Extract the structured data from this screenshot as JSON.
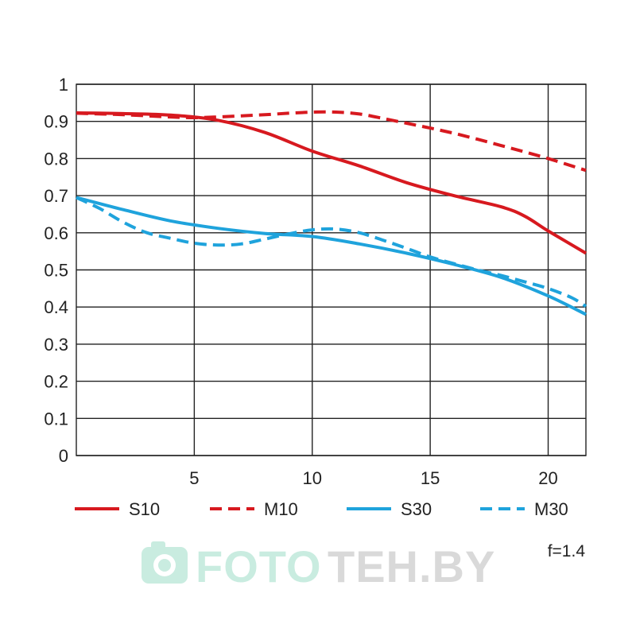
{
  "chart_data": {
    "type": "line",
    "title": "",
    "xlabel": "",
    "ylabel": "",
    "xlim": [
      0,
      21.6
    ],
    "ylim": [
      0,
      1
    ],
    "x_ticks": [
      5,
      10,
      15,
      20
    ],
    "y_ticks": [
      0,
      0.1,
      0.2,
      0.3,
      0.4,
      0.5,
      0.6,
      0.7,
      0.8,
      0.9,
      1
    ],
    "x_tick_labels": [
      "5",
      "10",
      "15",
      "20"
    ],
    "y_tick_labels": [
      "0",
      "0.1",
      "0.2",
      "0.3",
      "0.4",
      "0.5",
      "0.6",
      "0.7",
      "0.8",
      "0.9",
      "1"
    ],
    "grid": true,
    "legend_position": "bottom",
    "series": [
      {
        "name": "S10",
        "color": "#d7191f",
        "dash": false,
        "x": [
          0,
          2,
          4,
          6,
          8,
          10,
          12,
          14,
          16,
          18,
          19,
          20,
          21.6
        ],
        "y": [
          0.923,
          0.921,
          0.917,
          0.903,
          0.87,
          0.82,
          0.78,
          0.735,
          0.7,
          0.67,
          0.645,
          0.605,
          0.545
        ]
      },
      {
        "name": "M10",
        "color": "#d7191f",
        "dash": true,
        "x": [
          0,
          2,
          4,
          5,
          6,
          7,
          8,
          9,
          10,
          11,
          12,
          13,
          14,
          15,
          16,
          17,
          18,
          19,
          20,
          21,
          21.6
        ],
        "y": [
          0.922,
          0.918,
          0.912,
          0.91,
          0.912,
          0.915,
          0.918,
          0.922,
          0.925,
          0.925,
          0.92,
          0.908,
          0.895,
          0.882,
          0.868,
          0.852,
          0.835,
          0.818,
          0.8,
          0.78,
          0.768
        ]
      },
      {
        "name": "S30",
        "color": "#1fa3dc",
        "dash": false,
        "x": [
          0,
          2,
          4,
          6,
          8,
          10,
          12,
          14,
          16,
          18,
          20,
          21.6
        ],
        "y": [
          0.695,
          0.662,
          0.632,
          0.612,
          0.598,
          0.59,
          0.57,
          0.545,
          0.515,
          0.48,
          0.43,
          0.38
        ]
      },
      {
        "name": "M30",
        "color": "#1fa3dc",
        "dash": true,
        "x": [
          0,
          1,
          2,
          3,
          4,
          5,
          6,
          7,
          8,
          9,
          10,
          11,
          12,
          13,
          14,
          15,
          16,
          17,
          18,
          19,
          20,
          21,
          21.6
        ],
        "y": [
          0.695,
          0.665,
          0.628,
          0.6,
          0.585,
          0.572,
          0.567,
          0.57,
          0.583,
          0.597,
          0.608,
          0.61,
          0.6,
          0.58,
          0.558,
          0.535,
          0.517,
          0.5,
          0.485,
          0.468,
          0.45,
          0.425,
          0.402
        ]
      }
    ]
  },
  "note": "f=1.4",
  "watermark": {
    "text_a": "FOTO",
    "text_b": "TEH.BY",
    "color_a": "#c9ece0",
    "color_b": "#d9d9d9",
    "icon": "camera-icon"
  }
}
